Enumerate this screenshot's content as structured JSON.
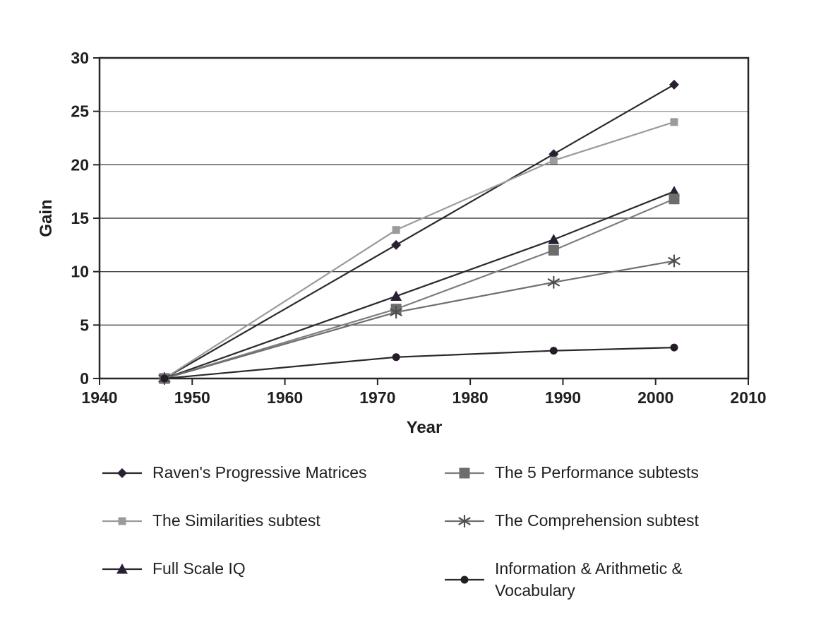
{
  "figure": {
    "background": "#ffffff",
    "text_color": "#1f1f1f",
    "border_color": "#262626",
    "gridline_color": "#474747",
    "gridline_25_color": "#9a9a9a"
  },
  "chart_data": {
    "type": "line",
    "title": "",
    "xlabel": "Year",
    "ylabel": "Gain",
    "xlim": [
      1940,
      2010
    ],
    "ylim": [
      0,
      30
    ],
    "x_ticks": [
      1940,
      1950,
      1960,
      1970,
      1980,
      1990,
      2000,
      2010
    ],
    "y_ticks": [
      0,
      5,
      10,
      15,
      20,
      25,
      30
    ],
    "grid": "horizontal gridlines at 5,10,15,20,25",
    "legend_position": "below plot, two columns",
    "x": [
      1947,
      1972,
      1989,
      2002
    ],
    "series": [
      {
        "name": "Raven's Progressive Matrices",
        "marker": "diamond",
        "color": "#2a2033",
        "line_color": "#2a2a2a",
        "values": [
          0,
          12.5,
          21,
          27.5
        ]
      },
      {
        "name": "The Similarities subtest",
        "marker": "square-small",
        "color": "#9b9b9b",
        "line_color": "#9b9b9b",
        "values": [
          0,
          13.9,
          20.4,
          24
        ]
      },
      {
        "name": "Full Scale IQ",
        "marker": "triangle",
        "color": "#2a2033",
        "line_color": "#2a2a2a",
        "values": [
          0,
          7.7,
          13,
          17.5
        ]
      },
      {
        "name": "The 5 Performance subtests",
        "marker": "square-large",
        "color": "#6d6d6d",
        "line_color": "#7e7e7e",
        "values": [
          0,
          6.5,
          12,
          16.8
        ]
      },
      {
        "name": "The Comprehension subtest",
        "marker": "asterisk",
        "color": "#4f4f4f",
        "line_color": "#6f6f6f",
        "values": [
          0,
          6.2,
          9,
          11
        ]
      },
      {
        "name": "Information & Arithmetic & Vocabulary",
        "marker": "circle",
        "color": "#251c28",
        "line_color": "#2a2a2a",
        "values": [
          0,
          2,
          2.6,
          2.9
        ]
      }
    ]
  }
}
